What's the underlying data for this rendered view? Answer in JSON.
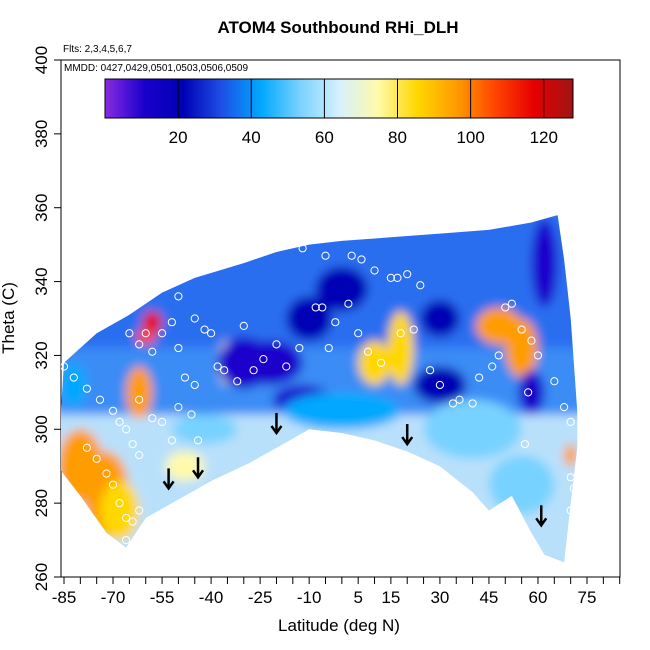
{
  "chart_data": {
    "type": "heatmap",
    "title": "ATOM4 Southbound RHi_DLH",
    "flights_note": "Flts: 2,3,4,5,6,7",
    "dates_note": "MMDD: 0427,0429,0501,0503,0506,0509",
    "xlabel": "Latitude (deg N)",
    "ylabel": "Theta (C)",
    "xlim": [
      -88,
      85
    ],
    "ylim": [
      260,
      400
    ],
    "x_ticks": [
      -85,
      -70,
      -55,
      -40,
      -25,
      -10,
      5,
      15,
      30,
      45,
      60,
      75
    ],
    "y_ticks": [
      260,
      280,
      300,
      320,
      340,
      360,
      380,
      400
    ],
    "colorbar": {
      "min": 0,
      "max": 128,
      "ticks": [
        20,
        40,
        60,
        80,
        100,
        120
      ],
      "colors": [
        "#8a2be2",
        "#1a00cc",
        "#0000b4",
        "#1e50e6",
        "#00a8ff",
        "#78d2ff",
        "#d6f0ff",
        "#fffaaa",
        "#ffd700",
        "#ff9c00",
        "#ff4500",
        "#e60000",
        "#a01414"
      ]
    },
    "tropopause_arrows": [
      {
        "lat": -53,
        "theta": 284
      },
      {
        "lat": -44,
        "theta": 287
      },
      {
        "lat": -20,
        "theta": 299
      },
      {
        "lat": 20,
        "theta": 296
      },
      {
        "lat": 61,
        "theta": 274
      }
    ],
    "coverage_top": [
      [
        -85,
        318
      ],
      [
        -75,
        326
      ],
      [
        -65,
        331
      ],
      [
        -55,
        337
      ],
      [
        -45,
        341
      ],
      [
        -30,
        345
      ],
      [
        -20,
        348
      ],
      [
        -10,
        350
      ],
      [
        0,
        351
      ],
      [
        15,
        352
      ],
      [
        30,
        353
      ],
      [
        45,
        354
      ],
      [
        58,
        356
      ],
      [
        66,
        358
      ],
      [
        68,
        346
      ],
      [
        70,
        330
      ],
      [
        72,
        305
      ]
    ],
    "coverage_bottom": [
      [
        -87,
        290
      ],
      [
        -80,
        282
      ],
      [
        -72,
        272
      ],
      [
        -66,
        268
      ],
      [
        -60,
        276
      ],
      [
        -52,
        280
      ],
      [
        -40,
        286
      ],
      [
        -28,
        291
      ],
      [
        -18,
        296
      ],
      [
        -10,
        300
      ],
      [
        0,
        299
      ],
      [
        10,
        297
      ],
      [
        20,
        294
      ],
      [
        30,
        290
      ],
      [
        40,
        283
      ],
      [
        45,
        278
      ],
      [
        52,
        282
      ],
      [
        58,
        272
      ],
      [
        62,
        266
      ],
      [
        68,
        264
      ],
      [
        70,
        280
      ],
      [
        72,
        295
      ]
    ],
    "field_blobs": [
      {
        "lat": -80,
        "theta": 290,
        "rx": 7,
        "ry": 10,
        "value": 92
      },
      {
        "lat": -72,
        "theta": 282,
        "rx": 7,
        "ry": 12,
        "value": 96
      },
      {
        "lat": -68,
        "theta": 278,
        "rx": 6,
        "ry": 8,
        "value": 90
      },
      {
        "lat": -62,
        "theta": 310,
        "rx": 4,
        "ry": 7,
        "value": 100
      },
      {
        "lat": -58,
        "theta": 329,
        "rx": 3,
        "ry": 3,
        "value": 112
      },
      {
        "lat": -60,
        "theta": 325,
        "rx": 3,
        "ry": 2,
        "value": 106
      },
      {
        "lat": -35,
        "theta": 318,
        "rx": 3,
        "ry": 6,
        "value": 74
      },
      {
        "lat": -30,
        "theta": 318,
        "rx": 8,
        "ry": 7,
        "value": 7
      },
      {
        "lat": -22,
        "theta": 318,
        "rx": 10,
        "ry": 6,
        "value": 12
      },
      {
        "lat": -10,
        "theta": 330,
        "rx": 7,
        "ry": 6,
        "value": 18
      },
      {
        "lat": -12,
        "theta": 308,
        "rx": 9,
        "ry": 4,
        "value": 14
      },
      {
        "lat": 0,
        "theta": 338,
        "rx": 8,
        "ry": 6,
        "value": 20
      },
      {
        "lat": 10,
        "theta": 318,
        "rx": 5,
        "ry": 6,
        "value": 86
      },
      {
        "lat": 18,
        "theta": 322,
        "rx": 4,
        "ry": 10,
        "value": 82
      },
      {
        "lat": 30,
        "theta": 330,
        "rx": 6,
        "ry": 5,
        "value": 16
      },
      {
        "lat": 30,
        "theta": 312,
        "rx": 8,
        "ry": 5,
        "value": 22
      },
      {
        "lat": 48,
        "theta": 328,
        "rx": 7,
        "ry": 5,
        "value": 96
      },
      {
        "lat": 55,
        "theta": 322,
        "rx": 5,
        "ry": 8,
        "value": 98
      },
      {
        "lat": 58,
        "theta": 310,
        "rx": 4,
        "ry": 6,
        "value": 8
      },
      {
        "lat": 62,
        "theta": 345,
        "rx": 4,
        "ry": 12,
        "value": 14
      },
      {
        "lat": 70,
        "theta": 293,
        "rx": 2,
        "ry": 3,
        "value": 95
      },
      {
        "lat": -82,
        "theta": 312,
        "rx": 4,
        "ry": 6,
        "value": 40
      },
      {
        "lat": -42,
        "theta": 300,
        "rx": 10,
        "ry": 4,
        "value": 58
      },
      {
        "lat": 0,
        "theta": 305,
        "rx": 18,
        "ry": 5,
        "value": 42
      },
      {
        "lat": 40,
        "theta": 300,
        "rx": 15,
        "ry": 8,
        "value": 54
      },
      {
        "lat": 55,
        "theta": 285,
        "rx": 10,
        "ry": 8,
        "value": 56
      },
      {
        "lat": -48,
        "theta": 290,
        "rx": 6,
        "ry": 4,
        "value": 74
      }
    ],
    "observations": [
      [
        -85,
        317
      ],
      [
        -82,
        314
      ],
      [
        -78,
        311
      ],
      [
        -74,
        308
      ],
      [
        -70,
        305
      ],
      [
        -68,
        302
      ],
      [
        -66,
        300
      ],
      [
        -64,
        296
      ],
      [
        -62,
        293
      ],
      [
        -70,
        285
      ],
      [
        -68,
        280
      ],
      [
        -66,
        276
      ],
      [
        -64,
        275
      ],
      [
        -62,
        278
      ],
      [
        -66,
        270
      ],
      [
        -72,
        288
      ],
      [
        -75,
        292
      ],
      [
        -78,
        295
      ],
      [
        -65,
        326
      ],
      [
        -62,
        323
      ],
      [
        -60,
        326
      ],
      [
        -58,
        321
      ],
      [
        -55,
        326
      ],
      [
        -52,
        329
      ],
      [
        -50,
        322
      ],
      [
        -48,
        314
      ],
      [
        -45,
        312
      ],
      [
        -62,
        308
      ],
      [
        -58,
        303
      ],
      [
        -55,
        302
      ],
      [
        -52,
        297
      ],
      [
        -50,
        306
      ],
      [
        -46,
        304
      ],
      [
        -44,
        297
      ],
      [
        -50,
        336
      ],
      [
        -45,
        330
      ],
      [
        -40,
        326
      ],
      [
        -36,
        316
      ],
      [
        -32,
        313
      ],
      [
        -30,
        328
      ],
      [
        -27,
        316
      ],
      [
        -24,
        319
      ],
      [
        -20,
        323
      ],
      [
        -17,
        317
      ],
      [
        -13,
        322
      ],
      [
        -8,
        333
      ],
      [
        -4,
        322
      ],
      [
        -2,
        329
      ],
      [
        3,
        347
      ],
      [
        6,
        346
      ],
      [
        -12,
        349
      ],
      [
        -5,
        347
      ],
      [
        2,
        334
      ],
      [
        10,
        343
      ],
      [
        15,
        341
      ],
      [
        17,
        341
      ],
      [
        20,
        342
      ],
      [
        24,
        339
      ],
      [
        -6,
        333
      ],
      [
        5,
        326
      ],
      [
        8,
        321
      ],
      [
        12,
        318
      ],
      [
        18,
        326
      ],
      [
        22,
        327
      ],
      [
        27,
        316
      ],
      [
        30,
        312
      ],
      [
        34,
        307
      ],
      [
        36,
        308
      ],
      [
        40,
        307
      ],
      [
        42,
        314
      ],
      [
        46,
        317
      ],
      [
        48,
        320
      ],
      [
        50,
        333
      ],
      [
        52,
        334
      ],
      [
        55,
        327
      ],
      [
        58,
        324
      ],
      [
        60,
        320
      ],
      [
        57,
        310
      ],
      [
        56,
        296
      ],
      [
        65,
        313
      ],
      [
        68,
        306
      ],
      [
        70,
        302
      ],
      [
        70,
        287
      ],
      [
        71,
        284
      ],
      [
        72,
        279
      ],
      [
        70,
        278
      ],
      [
        -42,
        327
      ],
      [
        -38,
        317
      ]
    ]
  }
}
